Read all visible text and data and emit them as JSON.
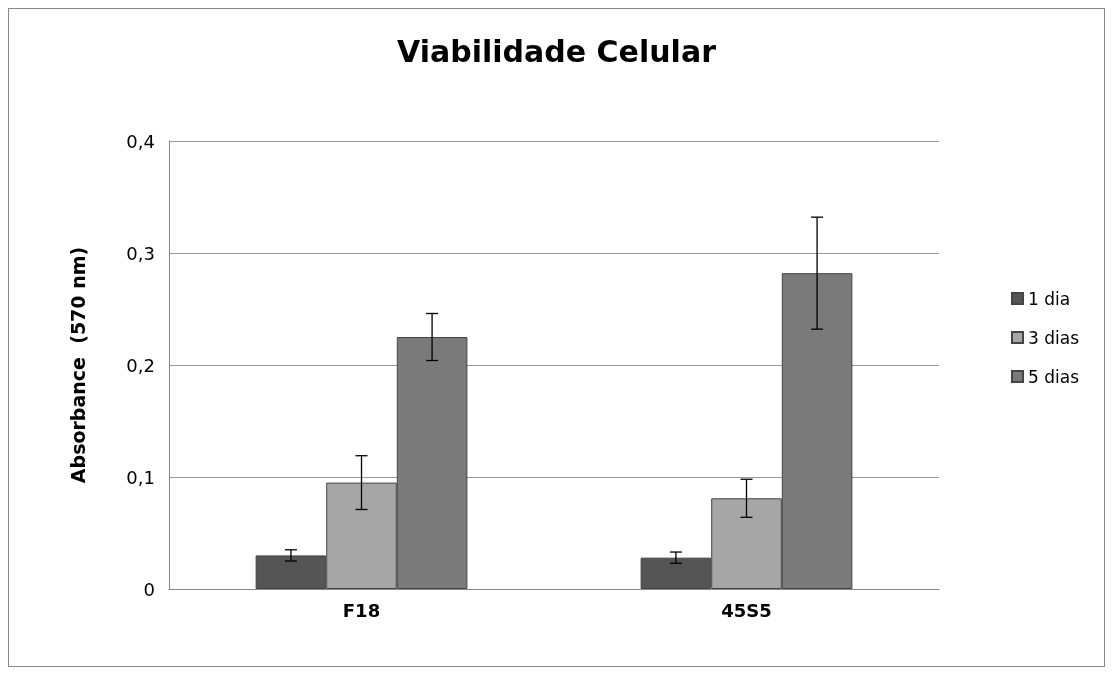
{
  "chart_data": {
    "type": "bar",
    "title": "Viabilidade Celular",
    "ylabel": "Absorbance  (570 nm)",
    "categories": [
      "F18",
      "45S5"
    ],
    "series": [
      {
        "name": "1 dia",
        "color": "#555555",
        "values": [
          0.03,
          0.028
        ],
        "errors": [
          0.005,
          0.005
        ]
      },
      {
        "name": "3 dias",
        "color": "#a6a6a6",
        "values": [
          0.095,
          0.081
        ],
        "errors": [
          0.024,
          0.017
        ]
      },
      {
        "name": "5 dias",
        "color": "#7a7a7a",
        "values": [
          0.225,
          0.282
        ],
        "errors": [
          0.021,
          0.05
        ]
      }
    ],
    "ylim": [
      0,
      0.4
    ],
    "yticks": [
      0,
      {
        "value": 0.1,
        "label": "0,1"
      },
      {
        "value": 0.2,
        "label": "0,2"
      },
      {
        "value": 0.3,
        "label": "0,3"
      },
      {
        "value": 0.4,
        "label": "0,4"
      }
    ],
    "grid": "y",
    "legend": "right"
  }
}
